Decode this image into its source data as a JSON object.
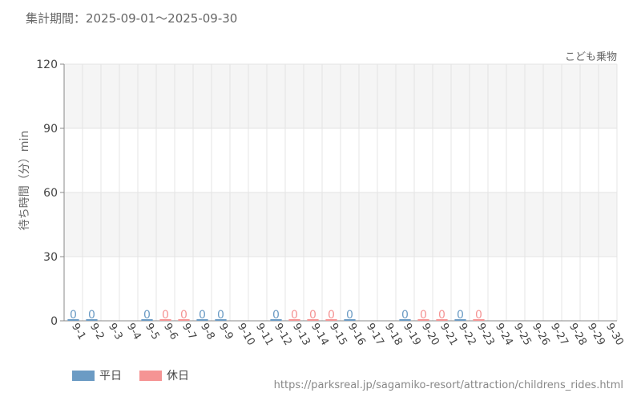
{
  "header": {
    "period": "集計期間：2025-09-01〜2025-09-30"
  },
  "chart_data": {
    "type": "bar",
    "series_label": "こども乗物",
    "ylabel": "待ち時間（分）min",
    "ylim": [
      0,
      120
    ],
    "yticks": [
      0,
      30,
      60,
      90,
      120
    ],
    "grid": true,
    "categories": [
      "9-1",
      "9-2",
      "9-3",
      "9-4",
      "9-5",
      "9-6",
      "9-7",
      "9-8",
      "9-9",
      "9-10",
      "9-11",
      "9-12",
      "9-13",
      "9-14",
      "9-15",
      "9-16",
      "9-17",
      "9-18",
      "9-19",
      "9-20",
      "9-21",
      "9-22",
      "9-23",
      "9-24",
      "9-25",
      "9-26",
      "9-27",
      "9-28",
      "9-29",
      "9-30"
    ],
    "day_type": [
      "weekday",
      "weekday",
      "weekday",
      "weekday",
      "weekday",
      "holiday",
      "holiday",
      "weekday",
      "weekday",
      "weekday",
      "weekday",
      "weekday",
      "holiday",
      "holiday",
      "holiday",
      "weekday",
      "weekday",
      "weekday",
      "weekday",
      "holiday",
      "holiday",
      "weekday",
      "holiday",
      "weekday",
      "weekday",
      "weekday",
      "holiday",
      "holiday",
      "weekday",
      "weekday"
    ],
    "values": [
      0,
      0,
      null,
      null,
      0,
      0,
      0,
      0,
      0,
      null,
      null,
      0,
      0,
      0,
      0,
      0,
      null,
      null,
      0,
      0,
      0,
      0,
      0,
      null,
      null,
      null,
      null,
      null,
      null,
      null
    ],
    "data_labels": [
      "0",
      "0",
      "",
      "",
      "0",
      "0",
      "0",
      "0",
      "0",
      "",
      "",
      "0",
      "0",
      "0",
      "0",
      "0",
      "",
      "",
      "0",
      "0",
      "0",
      "0",
      "0",
      "",
      "",
      "",
      "",
      "",
      "",
      ""
    ],
    "legend_placement": "bottom-left",
    "series": [
      {
        "name": "平日",
        "key": "weekday",
        "color": "#6b9bc4"
      },
      {
        "name": "休日",
        "key": "holiday",
        "color": "#f59494"
      }
    ]
  },
  "footer": {
    "source": "https://parksreal.jp/sagamiko-resort/attraction/childrens_rides.html"
  },
  "colors": {
    "weekday": "#6b9bc4",
    "holiday": "#f59494",
    "band": "#f5f5f5",
    "grid": "#e4e4e4",
    "axis": "#888888"
  }
}
